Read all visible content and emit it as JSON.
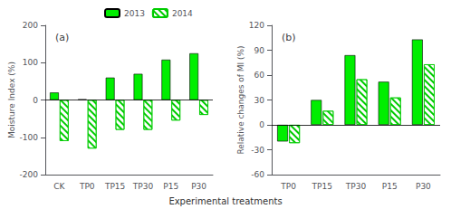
{
  "chart_data": [
    {
      "type": "bar",
      "title": "(a)",
      "categories": [
        "CK",
        "TP0",
        "TP15",
        "TP30",
        "P15",
        "P30"
      ],
      "series": [
        {
          "name": "2013",
          "color": "#00EE00",
          "values": [
            20,
            2,
            60,
            70,
            108,
            125
          ]
        },
        {
          "name": "2014",
          "color": "#00CC00",
          "values": [
            -110,
            -130,
            -80,
            -80,
            -55,
            -40
          ]
        }
      ],
      "ylabel": "Moisture Index (%)",
      "ylim": [
        -200,
        200
      ],
      "yticks": [
        -200,
        -100,
        0,
        100,
        200
      ],
      "grid": false,
      "legend": "top"
    },
    {
      "type": "bar",
      "title": "(b)",
      "categories": [
        "TP0",
        "TP15",
        "TP30",
        "P15",
        "P30"
      ],
      "series": [
        {
          "name": "2013",
          "color": "#00EE00",
          "values": [
            -20,
            30,
            84,
            52,
            103
          ]
        },
        {
          "name": "2014",
          "color": "#00CC00",
          "values": [
            -22,
            17,
            55,
            33,
            73
          ]
        }
      ],
      "ylabel": "Relative changes of MI (%)",
      "ylim": [
        -60,
        120
      ],
      "yticks": [
        -60,
        -30,
        0,
        30,
        60,
        90,
        120
      ],
      "grid": false
    }
  ],
  "xlabel": "Experimental treatments"
}
